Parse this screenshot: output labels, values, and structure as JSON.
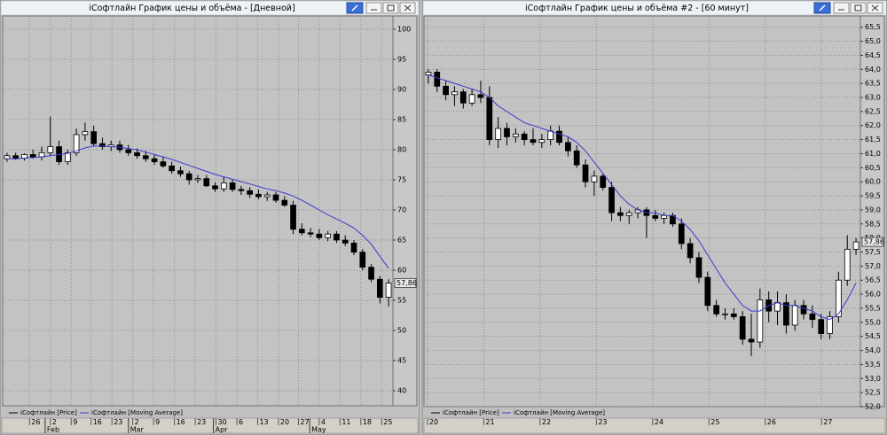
{
  "chart_data": [
    {
      "type": "candlestick",
      "title": "iСофтлайн График цены и объёма - [Дневной]",
      "xlim": [
        -0.5,
        44.5
      ],
      "ylim": [
        37.5,
        102.2
      ],
      "yticks": [
        40,
        45,
        50,
        55,
        60,
        65,
        70,
        75,
        80,
        85,
        90,
        95,
        100
      ],
      "grid": true,
      "xticks": [
        {
          "value": 2.6,
          "label": "26"
        },
        {
          "value": 5.0,
          "label": "2"
        },
        {
          "value": 7.4,
          "label": "9"
        },
        {
          "value": 9.7,
          "label": "16"
        },
        {
          "value": 12.1,
          "label": "23"
        },
        {
          "value": 14.5,
          "label": "2"
        },
        {
          "value": 16.9,
          "label": "9"
        },
        {
          "value": 19.3,
          "label": "16"
        },
        {
          "value": 21.7,
          "label": "23"
        },
        {
          "value": 24.1,
          "label": "30"
        },
        {
          "value": 26.5,
          "label": "6"
        },
        {
          "value": 28.9,
          "label": "13"
        },
        {
          "value": 31.3,
          "label": "20"
        },
        {
          "value": 33.6,
          "label": "27"
        },
        {
          "value": 36.0,
          "label": "4"
        },
        {
          "value": 38.4,
          "label": "11"
        },
        {
          "value": 40.8,
          "label": "18"
        },
        {
          "value": 43.2,
          "label": "25"
        }
      ],
      "month_ticks": [
        {
          "value": 4.4,
          "label": "Feb"
        },
        {
          "value": 14.0,
          "label": "Mar"
        },
        {
          "value": 23.8,
          "label": "Apr"
        },
        {
          "value": 34.9,
          "label": "May"
        }
      ],
      "last_price": {
        "value": 57.86,
        "label": "57,86"
      },
      "series": [
        {
          "name": "iСофтлайн [Price]",
          "color": "#000000",
          "open": [
            78.5,
            79,
            78.6,
            79.2,
            78.8,
            79.5,
            80.5,
            78,
            79.5,
            82.5,
            83,
            81,
            80.5,
            80.8,
            80,
            79.5,
            79,
            78.5,
            78,
            77.3,
            76.5,
            76,
            75,
            75.2,
            74,
            73.5,
            74.5,
            73.4,
            73.2,
            72.6,
            72.2,
            72.5,
            71.6,
            70.8,
            66.8,
            66.2,
            66,
            65.4,
            66,
            65,
            64.5,
            63,
            60.5,
            58.5,
            55.5
          ],
          "high": [
            79.5,
            79.5,
            79.4,
            80,
            80.5,
            85.5,
            81.5,
            80,
            83.5,
            84.5,
            84,
            82,
            81.5,
            81.5,
            80.8,
            80.2,
            79.8,
            79.2,
            78.8,
            78,
            77.2,
            76.5,
            75.8,
            75.8,
            74.6,
            75.5,
            75,
            74,
            73.8,
            73.4,
            73,
            73,
            72.3,
            71.5,
            67.8,
            67,
            66.8,
            66.5,
            66.5,
            65.8,
            65,
            63.5,
            61,
            59,
            58.5
          ],
          "low": [
            78,
            78.3,
            78.2,
            78.5,
            78.2,
            79,
            77.5,
            77.5,
            79,
            81.5,
            80.5,
            80,
            79.8,
            79.5,
            79,
            78.5,
            78,
            77.5,
            77,
            76,
            75.5,
            74.2,
            74.5,
            73.8,
            73,
            73,
            73,
            72.5,
            72,
            71.8,
            71.5,
            71.2,
            70.5,
            66,
            65.8,
            65.5,
            65,
            64.8,
            64.5,
            64,
            62.5,
            60,
            58,
            54.5,
            54
          ],
          "close": [
            79,
            78.6,
            79.2,
            78.8,
            79.5,
            80.5,
            78,
            79.5,
            82.5,
            83,
            81,
            80.5,
            80.8,
            80,
            79.5,
            79,
            78.5,
            78,
            77.3,
            76.5,
            76,
            75,
            75.2,
            74,
            73.5,
            74.5,
            73.4,
            73.2,
            72.6,
            72.2,
            72.5,
            71.6,
            70.8,
            66.8,
            66.2,
            66,
            65.4,
            66,
            65,
            64.5,
            63,
            60.5,
            58.5,
            55.5,
            57.86
          ]
        },
        {
          "name": "iСофтлайн [Moving Average]",
          "color": "#3a3ad0",
          "values": [
            78.5,
            78.5,
            78.6,
            78.7,
            78.8,
            79,
            79.2,
            79.4,
            79.8,
            80.3,
            80.6,
            80.6,
            80.5,
            80.4,
            80.2,
            80,
            79.6,
            79.2,
            78.8,
            78.4,
            77.9,
            77.4,
            76.9,
            76.4,
            75.9,
            75.5,
            75.1,
            74.7,
            74.3,
            73.9,
            73.5,
            73.2,
            72.8,
            72.3,
            71.6,
            70.8,
            70,
            69.2,
            68.5,
            67.8,
            67,
            65.8,
            64.3,
            62.3,
            60.3
          ]
        }
      ]
    },
    {
      "type": "candlestick",
      "title": "iСофтлайн График цены и объёма #2 - [60 минут]",
      "xlim": [
        -0.5,
        49.5
      ],
      "ylim": [
        52.0,
        65.9
      ],
      "yticks": [
        {
          "value": 52,
          "label": "52,0"
        },
        {
          "value": 52.5,
          "label": "52,5"
        },
        {
          "value": 53,
          "label": "53,0"
        },
        {
          "value": 53.5,
          "label": "53,5"
        },
        {
          "value": 54,
          "label": "54,0"
        },
        {
          "value": 54.5,
          "label": "54,5"
        },
        {
          "value": 55,
          "label": "55,0"
        },
        {
          "value": 55.5,
          "label": "55,5"
        },
        {
          "value": 56,
          "label": "56,0"
        },
        {
          "value": 56.5,
          "label": "56,5"
        },
        {
          "value": 57,
          "label": "57,0"
        },
        {
          "value": 57.5,
          "label": "57,5"
        },
        {
          "value": 58,
          "label": "58,0"
        },
        {
          "value": 58.5,
          "label": "58,5"
        },
        {
          "value": 59,
          "label": "59,0"
        },
        {
          "value": 59.5,
          "label": "59,5"
        },
        {
          "value": 60,
          "label": "60,0"
        },
        {
          "value": 60.5,
          "label": "60,5"
        },
        {
          "value": 61,
          "label": "61,0"
        },
        {
          "value": 61.5,
          "label": "61,5"
        },
        {
          "value": 62,
          "label": "62,0"
        },
        {
          "value": 62.5,
          "label": "62,5"
        },
        {
          "value": 63,
          "label": "63,0"
        },
        {
          "value": 63.5,
          "label": "63,5"
        },
        {
          "value": 64,
          "label": "64,0"
        },
        {
          "value": 64.5,
          "label": "64,5"
        },
        {
          "value": 65,
          "label": "65,0"
        },
        {
          "value": 65.5,
          "label": "65,5"
        }
      ],
      "grid": true,
      "xticks": [
        {
          "value": -0.1,
          "label": "20"
        },
        {
          "value": 6.35,
          "label": "21"
        },
        {
          "value": 12.8,
          "label": "22"
        },
        {
          "value": 19.25,
          "label": "23"
        },
        {
          "value": 25.7,
          "label": "24"
        },
        {
          "value": 32.15,
          "label": "25"
        },
        {
          "value": 38.6,
          "label": "26"
        },
        {
          "value": 45.05,
          "label": "27"
        }
      ],
      "month_ticks": [],
      "last_price": {
        "value": 57.86,
        "label": "57,86"
      },
      "series": [
        {
          "name": "iСофтлайн [Price]",
          "color": "#000000",
          "open": [
            63.8,
            63.9,
            63.4,
            63.1,
            63.2,
            62.8,
            63.1,
            63,
            61.5,
            61.9,
            61.6,
            61.7,
            61.5,
            61.4,
            61.5,
            61.8,
            61.4,
            61.1,
            60.6,
            60,
            60.2,
            59.8,
            58.9,
            58.8,
            58.9,
            59,
            58.8,
            58.7,
            58.8,
            58.5,
            57.8,
            57.3,
            56.6,
            55.6,
            55.3,
            55.3,
            55.2,
            54.4,
            54.3,
            55.8,
            55.4,
            55.7,
            54.9,
            55.6,
            55.3,
            55.1,
            54.6,
            55.2,
            56.5,
            57.6
          ],
          "high": [
            64,
            64,
            63.6,
            63.4,
            63.3,
            63.3,
            63.6,
            63.4,
            62.3,
            62.1,
            61.9,
            61.8,
            61.9,
            61.7,
            62,
            62,
            61.6,
            61.3,
            60.8,
            60.4,
            60.3,
            60,
            59.1,
            59,
            59.1,
            59.1,
            59,
            58.9,
            58.9,
            58.7,
            58,
            57.5,
            56.8,
            55.8,
            55.5,
            55.5,
            55.4,
            55.3,
            56.2,
            56.1,
            56.1,
            56,
            55.8,
            55.8,
            55.6,
            55.3,
            55.4,
            56.8,
            58.1,
            58
          ],
          "low": [
            63.5,
            63.2,
            62.9,
            62.7,
            62.6,
            62.7,
            62.8,
            61.3,
            61.2,
            61.3,
            61.4,
            61.3,
            61.3,
            61.2,
            61.3,
            61.3,
            60.9,
            60.5,
            59.8,
            59.5,
            59.7,
            58.6,
            58.6,
            58.5,
            58.7,
            58,
            58.6,
            58.5,
            58.4,
            57.6,
            57.1,
            56.4,
            55.4,
            55.2,
            55.1,
            55.1,
            54.2,
            53.8,
            54.1,
            55,
            54.9,
            54.6,
            54.7,
            55.1,
            54.8,
            54.4,
            54.4,
            55,
            56.3,
            57.4
          ],
          "close": [
            63.9,
            63.4,
            63.1,
            63.2,
            62.8,
            63.1,
            63,
            61.5,
            61.9,
            61.6,
            61.7,
            61.5,
            61.4,
            61.5,
            61.8,
            61.4,
            61.1,
            60.6,
            60,
            60.2,
            59.8,
            58.9,
            58.8,
            58.9,
            59,
            58.8,
            58.7,
            58.8,
            58.5,
            57.8,
            57.3,
            56.6,
            55.6,
            55.3,
            55.3,
            55.2,
            54.4,
            54.3,
            55.8,
            55.4,
            55.7,
            54.9,
            55.6,
            55.3,
            55.1,
            54.6,
            55.2,
            56.5,
            57.6,
            57.86
          ]
        },
        {
          "name": "iСофтлайн [Moving Average]",
          "color": "#3a3ad0",
          "values": [
            63.8,
            63.7,
            63.6,
            63.5,
            63.4,
            63.3,
            63.2,
            63,
            62.7,
            62.5,
            62.3,
            62.1,
            62,
            61.9,
            61.8,
            61.7,
            61.6,
            61.4,
            61.1,
            60.7,
            60.3,
            59.9,
            59.5,
            59.2,
            59,
            58.9,
            58.9,
            58.8,
            58.8,
            58.6,
            58.3,
            57.9,
            57.4,
            56.9,
            56.4,
            56,
            55.6,
            55.4,
            55.4,
            55.6,
            55.7,
            55.6,
            55.6,
            55.5,
            55.4,
            55.2,
            55.1,
            55.3,
            55.8,
            56.4
          ]
        }
      ]
    }
  ]
}
